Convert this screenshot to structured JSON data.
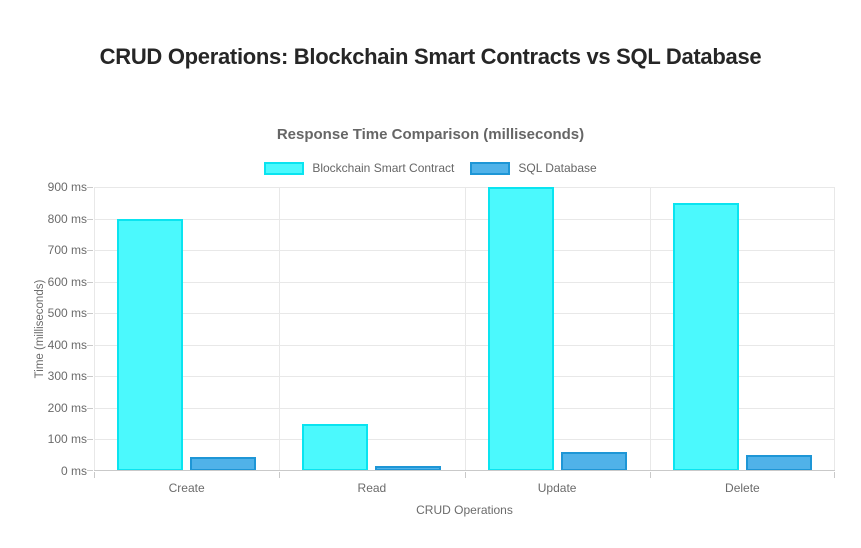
{
  "page": {
    "title": "CRUD Operations: Blockchain Smart Contracts vs SQL Database"
  },
  "chart_data": {
    "type": "bar",
    "title": "Response Time Comparison (milliseconds)",
    "categories": [
      "Create",
      "Read",
      "Update",
      "Delete"
    ],
    "series": [
      {
        "key": "blockchain",
        "name": "Blockchain Smart Contract",
        "values": [
          800,
          150,
          900,
          850
        ],
        "fill": "#4BF9FD",
        "border": "#0AE4F0"
      },
      {
        "key": "sql",
        "name": "SQL Database",
        "values": [
          45,
          15,
          60,
          50
        ],
        "fill": "#50B2E9",
        "border": "#1E96D6"
      }
    ],
    "xlabel": "CRUD Operations",
    "ylabel": "Time (milliseconds)",
    "ylim": [
      0,
      900
    ],
    "ytick_step": 100,
    "yticks": [
      "0 ms",
      "100 ms",
      "200 ms",
      "300 ms",
      "400 ms",
      "500 ms",
      "600 ms",
      "700 ms",
      "800 ms",
      "900 ms"
    ],
    "grid": true,
    "legend_position": "top"
  },
  "colors": {
    "title_text": "#262626",
    "chart_text": "#666666",
    "gridline": "#e8e8e8",
    "axis_line": "#c9c9c9",
    "background": "#ffffff"
  }
}
